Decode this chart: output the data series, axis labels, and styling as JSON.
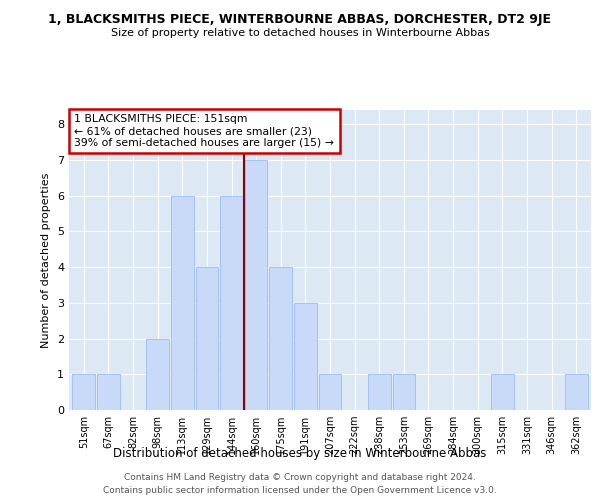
{
  "title": "1, BLACKSMITHS PIECE, WINTERBOURNE ABBAS, DORCHESTER, DT2 9JE",
  "subtitle": "Size of property relative to detached houses in Winterbourne Abbas",
  "xlabel": "Distribution of detached houses by size in Winterbourne Abbas",
  "ylabel": "Number of detached properties",
  "categories": [
    "51sqm",
    "67sqm",
    "82sqm",
    "98sqm",
    "113sqm",
    "129sqm",
    "144sqm",
    "160sqm",
    "175sqm",
    "191sqm",
    "207sqm",
    "222sqm",
    "238sqm",
    "253sqm",
    "269sqm",
    "284sqm",
    "300sqm",
    "315sqm",
    "331sqm",
    "346sqm",
    "362sqm"
  ],
  "values": [
    1,
    1,
    0,
    2,
    6,
    4,
    6,
    7,
    4,
    3,
    1,
    0,
    1,
    1,
    0,
    0,
    0,
    1,
    0,
    0,
    1
  ],
  "bar_color": "#c9daf8",
  "bar_edgecolor": "#a4c2f4",
  "vline_x": 6.5,
  "vline_color": "#8b0000",
  "annotation_title": "1 BLACKSMITHS PIECE: 151sqm",
  "annotation_line2": "← 61% of detached houses are smaller (23)",
  "annotation_line3": "39% of semi-detached houses are larger (15) →",
  "annotation_box_color": "#cc0000",
  "ylim": [
    0,
    8.4
  ],
  "yticks": [
    0,
    1,
    2,
    3,
    4,
    5,
    6,
    7,
    8
  ],
  "bg_color": "#dce9f5",
  "footer_line1": "Contains HM Land Registry data © Crown copyright and database right 2024.",
  "footer_line2": "Contains public sector information licensed under the Open Government Licence v3.0."
}
